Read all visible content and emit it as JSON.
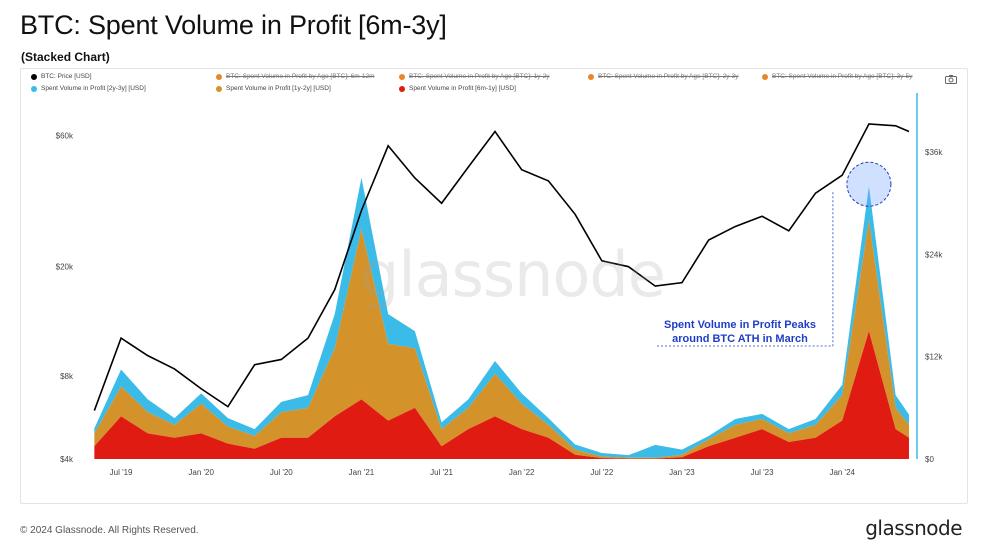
{
  "title": "BTC: Spent Volume in Profit [6m-3y]",
  "subtitle": "(Stacked Chart)",
  "footer": {
    "copyright": "© 2024 Glassnode. All Rights Reserved.",
    "logo": "glassnode"
  },
  "watermark": "glassnode",
  "annotation": {
    "line1": "Spent Volume in Profit Peaks",
    "line2": "around BTC ATH in March"
  },
  "legend": [
    {
      "label": "BTC: Price [USD]",
      "color": "#000000",
      "active": true
    },
    {
      "label": "BTC: Spent Volume in Profit by Age [BTC]: 6m-12m",
      "color": "#e8862a",
      "active": false
    },
    {
      "label": "BTC: Spent Volume in Profit by Age [BTC]: 1y-2y",
      "color": "#e8862a",
      "active": false
    },
    {
      "label": "BTC: Spent Volume in Profit by Age [BTC]: 2y-3y",
      "color": "#e8862a",
      "active": false
    },
    {
      "label": "BTC: Spent Volume in Profit by Age [BTC]: 3y-5y",
      "color": "#e8862a",
      "active": false
    },
    {
      "label": "Spent Volume in Profit [2y-3y] [USD]",
      "color": "#3bbbe8",
      "active": true
    },
    {
      "label": "Spent Volume in Profit [1y-2y] [USD]",
      "color": "#d4922a",
      "active": true
    },
    {
      "label": "Spent Volume in Profit [6m-1y] [USD]",
      "color": "#e01b12",
      "active": true
    }
  ],
  "chart_data": {
    "type": "area",
    "x_ticks": [
      "Jul '19",
      "Jan '20",
      "Jul '20",
      "Jan '21",
      "Jul '21",
      "Jan '22",
      "Jul '22",
      "Jan '23",
      "Jul '23",
      "Jan '24"
    ],
    "y_left_ticks": [
      "$4k",
      "$8k",
      "$20k",
      "$60k"
    ],
    "y_right_ticks": [
      "$0",
      "$12k",
      "$24k",
      "$36k"
    ],
    "y_left_scale": "log",
    "y_left_range": [
      4000,
      80000
    ],
    "y_right_range": [
      0,
      42000
    ],
    "colors": {
      "price": "#000000",
      "2y-3y": "#3bbbe8",
      "1y-2y": "#d4922a",
      "6m-1y": "#e01b12"
    },
    "x_dates": [
      "2019-05",
      "2019-07",
      "2019-09",
      "2019-11",
      "2020-01",
      "2020-03",
      "2020-05",
      "2020-07",
      "2020-09",
      "2020-11",
      "2021-01",
      "2021-03",
      "2021-05",
      "2021-07",
      "2021-09",
      "2021-11",
      "2022-01",
      "2022-03",
      "2022-05",
      "2022-07",
      "2022-09",
      "2022-11",
      "2023-01",
      "2023-03",
      "2023-05",
      "2023-07",
      "2023-09",
      "2023-11",
      "2024-01",
      "2024-03",
      "2024-05",
      "2024-06"
    ],
    "series": [
      {
        "name": "BTC: Price [USD]",
        "axis": "left",
        "values": [
          6000,
          11000,
          9500,
          8500,
          7200,
          6200,
          8800,
          9200,
          11000,
          16500,
          32000,
          55000,
          42000,
          34000,
          46000,
          62000,
          45000,
          41000,
          31000,
          21000,
          20000,
          17000,
          17500,
          25000,
          28000,
          30500,
          27000,
          37000,
          43000,
          66000,
          65000,
          62000
        ]
      },
      {
        "name": "Spent Volume in Profit [6m-1y] [USD]",
        "axis": "right",
        "values": [
          1500,
          5000,
          3000,
          2500,
          3000,
          1800,
          1200,
          2500,
          2500,
          5000,
          7000,
          4500,
          6000,
          1500,
          3500,
          5000,
          3500,
          2500,
          500,
          100,
          50,
          50,
          200,
          1500,
          2500,
          3500,
          2000,
          2500,
          4500,
          15000,
          3500,
          2500
        ]
      },
      {
        "name": "Spent Volume in Profit [1y-2y] [USD]",
        "axis": "right",
        "values": [
          1500,
          3500,
          2500,
          1500,
          3500,
          2000,
          1500,
          3000,
          3500,
          8000,
          20000,
          9000,
          7000,
          2000,
          2500,
          5000,
          3000,
          1500,
          600,
          200,
          100,
          100,
          300,
          800,
          1500,
          1200,
          1000,
          1500,
          3000,
          13000,
          2500,
          1500
        ]
      },
      {
        "name": "Spent Volume in Profit [2y-3y] [USD]",
        "axis": "right",
        "values": [
          600,
          2000,
          1500,
          800,
          1200,
          1000,
          800,
          1200,
          1500,
          4000,
          6000,
          3500,
          2000,
          800,
          1000,
          1500,
          1200,
          800,
          600,
          400,
          300,
          1500,
          600,
          400,
          700,
          600,
          500,
          700,
          1200,
          4000,
          1500,
          1200
        ]
      }
    ]
  }
}
